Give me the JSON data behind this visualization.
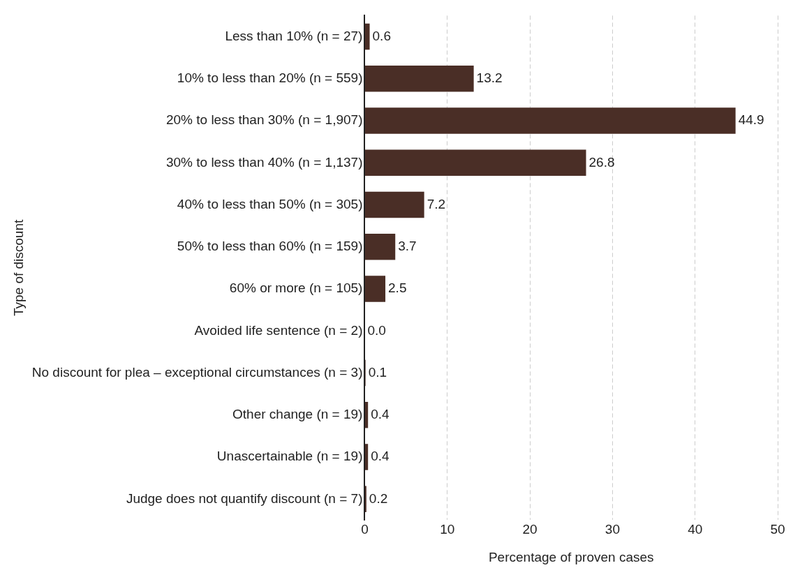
{
  "chart_data": {
    "type": "bar",
    "orientation": "horizontal",
    "xlabel": "Percentage of proven cases",
    "ylabel": "Type of discount",
    "categories": [
      "Less than 10% (n = 27)",
      "10% to less than 20% (n = 559)",
      "20% to less than 30% (n = 1,907)",
      "30% to less than 40% (n = 1,137)",
      "40% to less than 50% (n = 305)",
      "50% to less than 60% (n = 159)",
      "60% or more (n = 105)",
      "Avoided life sentence (n = 2)",
      "No discount for plea – exceptional circumstances (n = 3)",
      "Other change (n = 19)",
      "Unascertainable (n = 19)",
      "Judge does not quantify discount (n = 7)"
    ],
    "values": [
      0.6,
      13.2,
      44.9,
      26.8,
      7.2,
      3.7,
      2.5,
      0.0,
      0.1,
      0.4,
      0.4,
      0.2
    ],
    "value_labels": [
      "0.6",
      "13.2",
      "44.9",
      "26.8",
      "7.2",
      "3.7",
      "2.5",
      "0.0",
      "0.1",
      "0.4",
      "0.4",
      "0.2"
    ],
    "color": "#4a2e26",
    "xlim": [
      0,
      50
    ],
    "xticks": [
      0,
      10,
      20,
      30,
      40,
      50
    ],
    "grid": "x",
    "legend": false
  }
}
